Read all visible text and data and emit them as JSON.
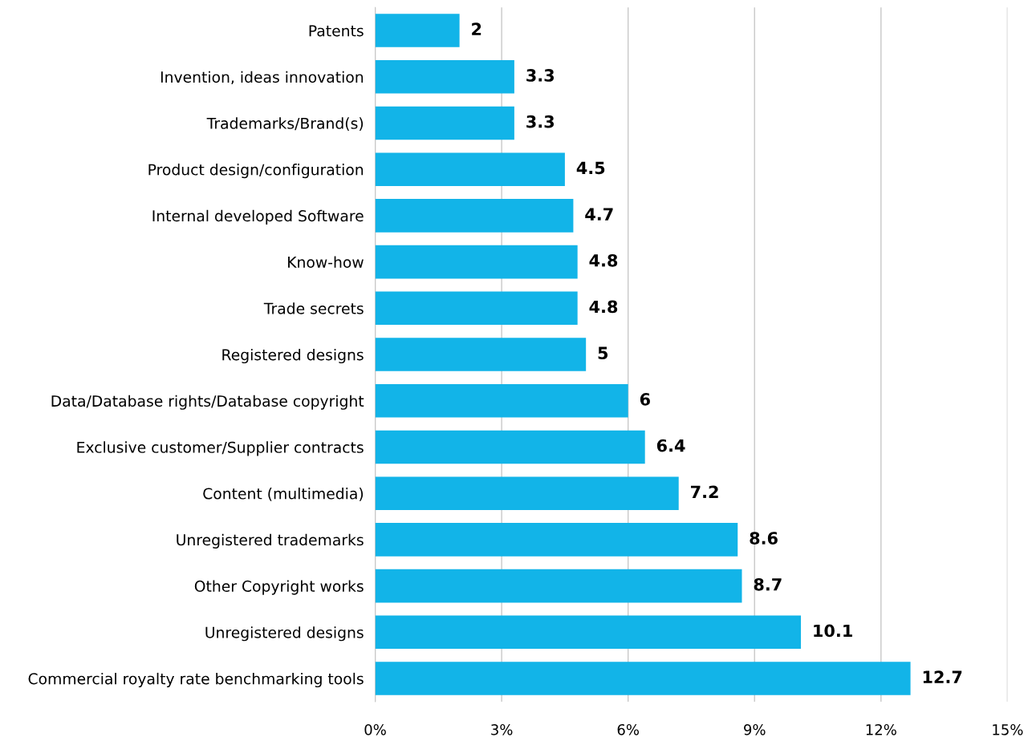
{
  "chart_data": {
    "type": "bar",
    "orientation": "horizontal",
    "categories": [
      "Patents",
      "Invention, ideas innovation",
      "Trademarks/Brand(s)",
      "Product design/configuration",
      "Internal developed Software",
      "Know-how",
      "Trade secrets",
      "Registered designs",
      "Data/Database rights/Database copyright",
      "Exclusive customer/Supplier contracts",
      "Content (multimedia)",
      "Unregistered trademarks",
      "Other Copyright works",
      "Unregistered designs",
      "Commercial royalty rate benchmarking tools"
    ],
    "values": [
      2,
      3.3,
      3.3,
      4.5,
      4.7,
      4.8,
      4.8,
      5,
      6,
      6.4,
      7.2,
      8.6,
      8.7,
      10.1,
      12.7
    ],
    "color": "#12b4e8",
    "xlim": [
      0,
      15
    ],
    "xticks": [
      {
        "value": 0,
        "label": "0%"
      },
      {
        "value": 3,
        "label": "3%"
      },
      {
        "value": 6,
        "label": "6%"
      },
      {
        "value": 9,
        "label": "9%"
      },
      {
        "value": 12,
        "label": "12%"
      },
      {
        "value": 15,
        "label": "15%"
      }
    ],
    "grid": "x",
    "data_labels": true
  }
}
